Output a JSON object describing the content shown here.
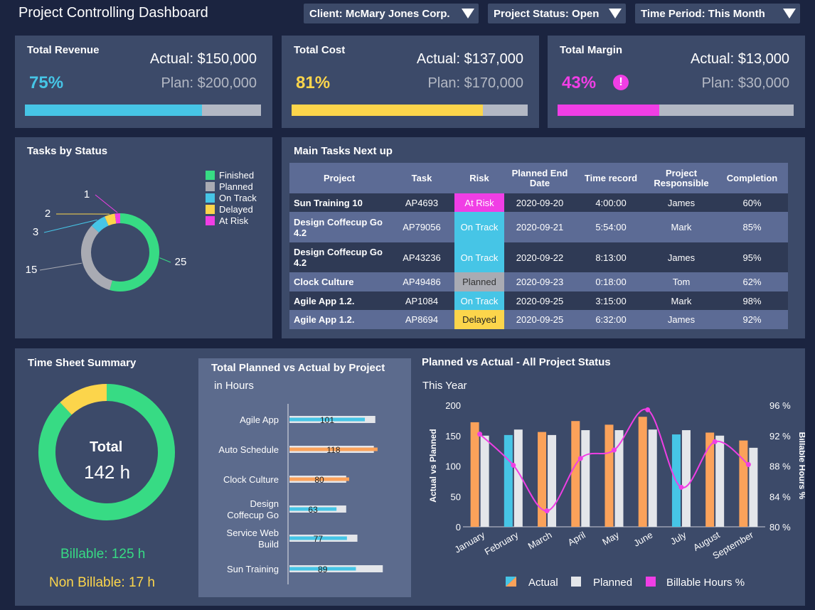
{
  "header": {
    "title": "Project Controlling Dashboard",
    "filters": [
      {
        "label": "Client: McMary Jones Corp."
      },
      {
        "label": "Project Status: Open"
      },
      {
        "label": "Time Period: This Month"
      }
    ]
  },
  "kpis": [
    {
      "title": "Total Revenue",
      "actual": "Actual: $150,000",
      "plan": "Plan: $200,000",
      "pct": "75%",
      "progress": 0.75,
      "color": "#46c5e6"
    },
    {
      "title": "Total Cost",
      "actual": "Actual: $137,000",
      "plan": "Plan: $170,000",
      "pct": "81%",
      "progress": 0.81,
      "color": "#fcd54b"
    },
    {
      "title": "Total Margin",
      "actual": "Actual: $13,000",
      "plan": "Plan: $30,000",
      "pct": "43%",
      "progress": 0.43,
      "color": "#f03ee5",
      "alert_icon": "exclamation-circle-icon"
    }
  ],
  "tasks_by_status": {
    "title": "Tasks by Status",
    "chart_data": {
      "type": "pie",
      "labels": [
        "Finished",
        "Planned",
        "On Track",
        "Delayed",
        "At Risk"
      ],
      "values": [
        25,
        15,
        3,
        2,
        1
      ],
      "colors": [
        "#37db84",
        "#a9abb3",
        "#46c5e6",
        "#fcd54b",
        "#f03ee5"
      ],
      "legend": "top-right"
    }
  },
  "main_tasks": {
    "title": "Main Tasks Next up",
    "columns": [
      "Project",
      "Task",
      "Risk",
      "Planned End Date",
      "Time record",
      "Project Responsible",
      "Completion"
    ],
    "rows": [
      {
        "project": "Sun Training 10",
        "task": "AP4693",
        "risk": "At Risk",
        "risk_color": "#f03ee5",
        "end": "2020-09-20",
        "time": "4:00:00",
        "resp": "James",
        "completion": "60%"
      },
      {
        "project": "Design Coffecup Go 4.2",
        "task": "AP79056",
        "risk": "On Track",
        "risk_color": "#46c5e6",
        "end": "2020-09-21",
        "time": "5:54:00",
        "resp": "Mark",
        "completion": "85%"
      },
      {
        "project": "Design Coffecup Go 4.2",
        "task": "AP43236",
        "risk": "On Track",
        "risk_color": "#46c5e6",
        "end": "2020-09-22",
        "time": "8:13:00",
        "resp": "James",
        "completion": "95%"
      },
      {
        "project": "Clock Culture",
        "task": "AP49486",
        "risk": "Planned",
        "risk_color": "#a9abb3",
        "end": "2020-09-23",
        "time": "0:18:00",
        "resp": "Tom",
        "completion": "62%"
      },
      {
        "project": "Agile App 1.2.",
        "task": "AP1084",
        "risk": "On Track",
        "risk_color": "#46c5e6",
        "end": "2020-09-25",
        "time": "3:15:00",
        "resp": "Mark",
        "completion": "98%"
      },
      {
        "project": "Agile App 1.2.",
        "task": "AP8694",
        "risk": "Delayed",
        "risk_color": "#fcd54b",
        "end": "2020-09-25",
        "time": "6:32:00",
        "resp": "James",
        "completion": "92%"
      }
    ]
  },
  "time_sheet": {
    "title": "Time Sheet Summary",
    "total_label": "Total",
    "total_value": "142 h",
    "billable": "Billable: 125 h",
    "non_billable": "Non Billable: 17 h",
    "chart_data": {
      "type": "pie",
      "labels": [
        "Billable",
        "Non Billable"
      ],
      "values": [
        125,
        17
      ],
      "colors": [
        "#37db84",
        "#fcd54b"
      ]
    }
  },
  "planned_vs_actual_project": {
    "title": "Total Planned vs Actual by Project",
    "subtitle": "in Hours",
    "chart_data": {
      "type": "bar",
      "orientation": "horizontal",
      "categories": [
        "Agile App",
        "Auto Schedule",
        "Clock Culture",
        "Design Coffecup Go",
        "Service Web Build",
        "Sun Training"
      ],
      "category_lines": [
        [
          "Agile App"
        ],
        [
          "Auto Schedule"
        ],
        [
          "Clock Culture"
        ],
        [
          "Design",
          "Coffecup Go"
        ],
        [
          "Service Web",
          "Build"
        ],
        [
          "Sun Training"
        ]
      ],
      "series": [
        {
          "values": [
            101,
            118,
            80,
            63,
            77,
            89
          ],
          "colors": [
            "#46c5e6",
            "#fba25a",
            "#fba25a",
            "#46c5e6",
            "#46c5e6",
            "#46c5e6"
          ]
        },
        {
          "values": [
            115,
            113,
            76,
            76,
            91,
            125
          ],
          "color": "#e4e6ea"
        }
      ]
    }
  },
  "planned_vs_actual_status": {
    "title": "Planned vs Actual  - All Project Status",
    "subtitle": "This Year",
    "chart_data": {
      "type": "bar",
      "categories": [
        "January",
        "February",
        "March",
        "April",
        "May",
        "June",
        "July",
        "August",
        "September"
      ],
      "ylabel": "Actual vs Planned",
      "y2label": "Billable Hours %",
      "ylim": [
        0,
        200
      ],
      "yticks": [
        "0",
        "50",
        "100",
        "150",
        "200"
      ],
      "y2lim": [
        80,
        96
      ],
      "y2ticks": [
        "80 %",
        "84 %",
        "88 %",
        "92 %",
        "96 %"
      ],
      "series": [
        {
          "name": "Actual",
          "values": [
            172,
            151,
            156,
            174,
            168,
            181,
            152,
            155,
            142
          ],
          "colors": [
            "#fba25a",
            "#46c5e6",
            "#fba25a",
            "#fba25a",
            "#fba25a",
            "#fba25a",
            "#46c5e6",
            "#fba25a",
            "#fba25a"
          ]
        },
        {
          "name": "Planned",
          "values": [
            150,
            160,
            151,
            159,
            159,
            160,
            159,
            150,
            130
          ],
          "color": "#e4e6ea"
        },
        {
          "name": "Billable Hours %",
          "type": "line",
          "values": [
            92.2,
            88.1,
            82.1,
            89.0,
            90.1,
            95.4,
            85.2,
            91.2,
            88.2
          ],
          "color": "#f03ee5"
        }
      ],
      "legend": "bottom"
    }
  }
}
